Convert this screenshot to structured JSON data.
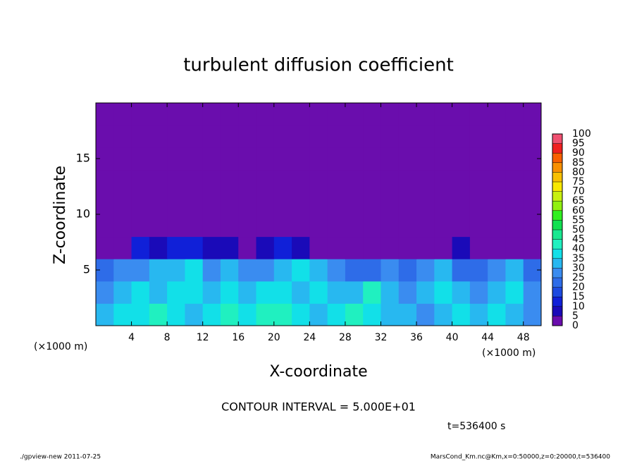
{
  "chart_data": {
    "type": "heatmap",
    "title": "turbulent diffusion coefficient",
    "xlabel": "X-coordinate",
    "ylabel": "Z-coordinate",
    "x_unit_label": "(×1000 m)",
    "y_unit_label": "(×1000 m)",
    "xlim": [
      0,
      50
    ],
    "ylim": [
      0,
      20
    ],
    "xticks": [
      4,
      8,
      12,
      16,
      20,
      24,
      28,
      32,
      36,
      40,
      44,
      48
    ],
    "yticks": [
      5,
      10,
      15
    ],
    "xbins": [
      0,
      2,
      4,
      6,
      8,
      10,
      12,
      14,
      16,
      18,
      20,
      22,
      24,
      26,
      28,
      30,
      32,
      34,
      36,
      38,
      40,
      42,
      44,
      46,
      48,
      50
    ],
    "ybins": [
      0,
      2,
      4,
      6,
      8,
      10,
      12,
      14,
      16,
      18,
      20
    ],
    "values": [
      [
        30,
        35,
        35,
        40,
        35,
        30,
        35,
        40,
        35,
        40,
        40,
        35,
        30,
        35,
        40,
        35,
        30,
        30,
        25,
        30,
        35,
        30,
        35,
        30,
        25
      ],
      [
        25,
        30,
        35,
        30,
        35,
        35,
        30,
        35,
        30,
        35,
        35,
        30,
        35,
        30,
        30,
        40,
        30,
        25,
        30,
        35,
        30,
        25,
        30,
        35,
        25
      ],
      [
        20,
        25,
        25,
        30,
        30,
        35,
        25,
        30,
        25,
        25,
        30,
        35,
        30,
        25,
        20,
        20,
        25,
        20,
        25,
        30,
        20,
        20,
        25,
        30,
        20
      ],
      [
        0,
        0,
        10,
        5,
        10,
        10,
        5,
        5,
        0,
        5,
        10,
        5,
        0,
        0,
        0,
        0,
        0,
        0,
        0,
        0,
        5,
        0,
        0,
        0,
        0
      ],
      [
        0,
        0,
        0,
        0,
        0,
        0,
        0,
        0,
        0,
        0,
        0,
        0,
        0,
        0,
        0,
        0,
        0,
        0,
        0,
        0,
        0,
        0,
        0,
        0,
        0
      ],
      [
        0,
        0,
        0,
        0,
        0,
        0,
        0,
        0,
        0,
        0,
        0,
        0,
        0,
        0,
        0,
        0,
        0,
        0,
        0,
        0,
        0,
        0,
        0,
        0,
        0
      ],
      [
        0,
        0,
        0,
        0,
        0,
        0,
        0,
        0,
        0,
        0,
        0,
        0,
        0,
        0,
        0,
        0,
        0,
        0,
        0,
        0,
        0,
        0,
        0,
        0,
        0
      ],
      [
        0,
        0,
        0,
        0,
        0,
        0,
        0,
        0,
        0,
        0,
        0,
        0,
        0,
        0,
        0,
        0,
        0,
        0,
        0,
        0,
        0,
        0,
        0,
        0,
        0
      ],
      [
        0,
        0,
        0,
        0,
        0,
        0,
        0,
        0,
        0,
        0,
        0,
        0,
        0,
        0,
        0,
        0,
        0,
        0,
        0,
        0,
        0,
        0,
        0,
        0,
        0
      ],
      [
        0,
        0,
        0,
        0,
        0,
        0,
        0,
        0,
        0,
        0,
        0,
        0,
        0,
        0,
        0,
        0,
        0,
        0,
        0,
        0,
        0,
        0,
        0,
        0,
        0
      ]
    ],
    "levels": [
      0,
      5,
      10,
      15,
      20,
      25,
      30,
      35,
      40,
      45,
      50,
      55,
      60,
      65,
      70,
      75,
      80,
      85,
      90,
      95,
      100
    ],
    "colors": [
      "#6a0dad",
      "#1a0ab8",
      "#1020d8",
      "#1d4ae0",
      "#2e6ce8",
      "#3a8cf0",
      "#28b8f0",
      "#12e0e8",
      "#20f0c0",
      "#18e890",
      "#10e050",
      "#30f020",
      "#90f010",
      "#c8f010",
      "#f8e800",
      "#f8c000",
      "#f89000",
      "#f86000",
      "#f02020",
      "#f05070"
    ],
    "annotations": [
      "CONTOUR INTERVAL = 5.000E+01",
      "t=536400 s"
    ],
    "footer_left": "./gpview-new  2011-07-25",
    "footer_right": "MarsCond_Km.nc@Km,x=0:50000,z=0:20000,t=536400"
  }
}
